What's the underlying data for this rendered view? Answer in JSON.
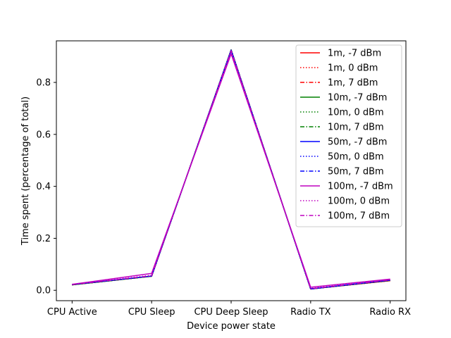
{
  "chart_data": {
    "type": "line",
    "title": "",
    "xlabel": "Device power state",
    "ylabel": "Time spent (percentage of total)",
    "categories": [
      "CPU Active",
      "CPU Sleep",
      "CPU Deep Sleep",
      "Radio TX",
      "Radio RX"
    ],
    "ylim": [
      -0.04,
      0.96
    ],
    "yticks": [
      "0.0",
      "0.2",
      "0.4",
      "0.6",
      "0.8"
    ],
    "legend_position": "upper right",
    "grid": false,
    "series": [
      {
        "name": "1m, -7 dBm",
        "color": "#ff0000",
        "dash": "solid",
        "values": [
          0.021,
          0.054,
          0.925,
          0.005,
          0.037
        ]
      },
      {
        "name": "1m, 0 dBm",
        "color": "#ff0000",
        "dash": "dotted",
        "values": [
          0.021,
          0.054,
          0.925,
          0.005,
          0.037
        ]
      },
      {
        "name": "1m, 7 dBm",
        "color": "#ff0000",
        "dash": "dashdot",
        "values": [
          0.021,
          0.054,
          0.925,
          0.005,
          0.037
        ]
      },
      {
        "name": "10m, -7 dBm",
        "color": "#008000",
        "dash": "solid",
        "values": [
          0.021,
          0.054,
          0.925,
          0.005,
          0.038
        ]
      },
      {
        "name": "10m, 0 dBm",
        "color": "#008000",
        "dash": "dotted",
        "values": [
          0.021,
          0.054,
          0.925,
          0.005,
          0.038
        ]
      },
      {
        "name": "10m, 7 dBm",
        "color": "#008000",
        "dash": "dashdot",
        "values": [
          0.021,
          0.054,
          0.925,
          0.005,
          0.038
        ]
      },
      {
        "name": "50m, -7 dBm",
        "color": "#0000ff",
        "dash": "solid",
        "values": [
          0.022,
          0.055,
          0.923,
          0.006,
          0.039
        ]
      },
      {
        "name": "50m, 0 dBm",
        "color": "#0000ff",
        "dash": "dotted",
        "values": [
          0.022,
          0.055,
          0.924,
          0.005,
          0.039
        ]
      },
      {
        "name": "50m, 7 dBm",
        "color": "#0000ff",
        "dash": "dashdot",
        "values": [
          0.022,
          0.055,
          0.924,
          0.005,
          0.039
        ]
      },
      {
        "name": "100m, -7 dBm",
        "color": "#bf00bf",
        "dash": "solid",
        "values": [
          0.023,
          0.065,
          0.91,
          0.012,
          0.043
        ]
      },
      {
        "name": "100m, 0 dBm",
        "color": "#bf00bf",
        "dash": "dotted",
        "values": [
          0.023,
          0.058,
          0.92,
          0.008,
          0.041
        ]
      },
      {
        "name": "100m, 7 dBm",
        "color": "#bf00bf",
        "dash": "dashdot",
        "values": [
          0.022,
          0.056,
          0.922,
          0.006,
          0.04
        ]
      }
    ]
  }
}
